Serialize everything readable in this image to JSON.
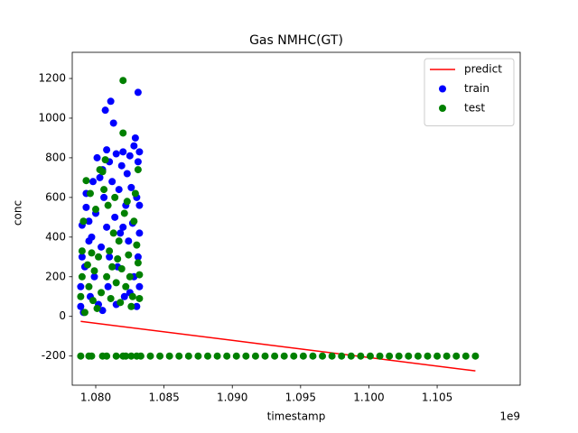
{
  "chart_data": {
    "type": "scatter",
    "title": "Gas NMHC(GT)",
    "x_label": "timestamp",
    "y_label": "conc",
    "x_offset_label": "1e9",
    "xlim": [
      1.07828,
      1.11108
    ],
    "ylim": [
      -347,
      1332
    ],
    "xticks": [
      {
        "value": 1.08,
        "label": "1.080"
      },
      {
        "value": 1.085,
        "label": "1.085"
      },
      {
        "value": 1.09,
        "label": "1.090"
      },
      {
        "value": 1.095,
        "label": "1.095"
      },
      {
        "value": 1.1,
        "label": "1.100"
      },
      {
        "value": 1.105,
        "label": "1.105"
      }
    ],
    "yticks": [
      -200,
      0,
      200,
      400,
      600,
      800,
      1000,
      1200
    ],
    "grid": false,
    "legend": "upper right",
    "series": [
      {
        "name": "predict",
        "color": "#ff0000",
        "kind": "line",
        "x": [
          1.0789,
          1.1078
        ],
        "values": [
          -25,
          -275
        ]
      },
      {
        "name": "train",
        "color": "#0000ff",
        "kind": "scatter",
        "x": [
          1.0789,
          1.0789,
          1.079,
          1.079,
          1.0791,
          1.0792,
          1.0793,
          1.0793,
          1.0795,
          1.0796,
          1.0797,
          1.0798,
          1.0799,
          1.08,
          1.0801,
          1.0802,
          1.0803,
          1.0804,
          1.0805,
          1.0806,
          1.0807,
          1.0808,
          1.0808,
          1.0809,
          1.081,
          1.081,
          1.0811,
          1.0812,
          1.0813,
          1.0814,
          1.0815,
          1.0816,
          1.0817,
          1.0818,
          1.0819,
          1.082,
          1.0821,
          1.0822,
          1.0823,
          1.0824,
          1.0825,
          1.0826,
          1.0827,
          1.0828,
          1.0829,
          1.0828,
          1.083,
          1.0831,
          1.0831,
          1.0832,
          1.0832,
          1.0832,
          1.0831,
          1.0832,
          1.083,
          1.0825,
          1.0815,
          1.0805,
          1.0795,
          1.082
        ],
        "values": [
          50,
          150,
          300,
          460,
          20,
          250,
          620,
          550,
          480,
          100,
          400,
          680,
          200,
          520,
          800,
          60,
          700,
          350,
          740,
          600,
          1040,
          840,
          450,
          150,
          780,
          300,
          1085,
          680,
          975,
          500,
          820,
          250,
          640,
          420,
          760,
          830,
          100,
          560,
          720,
          380,
          810,
          650,
          470,
          860,
          900,
          200,
          600,
          1130,
          780,
          830,
          560,
          420,
          300,
          150,
          50,
          120,
          60,
          30,
          380,
          450
        ]
      },
      {
        "name": "test",
        "color": "#008000",
        "kind": "scatter",
        "x": [
          1.0789,
          1.079,
          1.079,
          1.0791,
          1.0792,
          1.0793,
          1.0794,
          1.0795,
          1.0796,
          1.0797,
          1.0798,
          1.0799,
          1.08,
          1.0801,
          1.0802,
          1.0803,
          1.0804,
          1.0805,
          1.0806,
          1.0807,
          1.0808,
          1.0809,
          1.081,
          1.0811,
          1.0812,
          1.0813,
          1.0814,
          1.0815,
          1.0816,
          1.0817,
          1.0818,
          1.0819,
          1.082,
          1.082,
          1.0821,
          1.0822,
          1.0823,
          1.0824,
          1.0825,
          1.0826,
          1.0827,
          1.0828,
          1.0829,
          1.083,
          1.0831,
          1.0832,
          1.0832,
          1.0831,
          1.0789,
          1.0795,
          1.0797,
          1.0805,
          1.0808,
          1.0815,
          1.082,
          1.0822,
          1.0826,
          1.083,
          1.0833,
          1.084,
          1.0847,
          1.0854,
          1.0861,
          1.0868,
          1.0875,
          1.0882,
          1.0889,
          1.0896,
          1.0903,
          1.091,
          1.0917,
          1.0924,
          1.0931,
          1.0938,
          1.0945,
          1.0952,
          1.0959,
          1.0966,
          1.0973,
          1.098,
          1.0987,
          1.0994,
          1.1001,
          1.1008,
          1.1015,
          1.1022,
          1.1029,
          1.1036,
          1.1043,
          1.105,
          1.1057,
          1.1064,
          1.1071,
          1.1078
        ],
        "values": [
          100,
          200,
          330,
          480,
          20,
          685,
          260,
          150,
          620,
          320,
          80,
          230,
          540,
          40,
          300,
          740,
          120,
          730,
          640,
          790,
          200,
          560,
          330,
          90,
          250,
          420,
          600,
          170,
          290,
          380,
          70,
          240,
          1190,
          925,
          520,
          150,
          580,
          310,
          200,
          50,
          100,
          480,
          620,
          360,
          270,
          210,
          90,
          740,
          -200,
          -200,
          -200,
          -200,
          -200,
          -200,
          -200,
          -200,
          -200,
          -200,
          -200,
          -200,
          -200,
          -200,
          -200,
          -200,
          -200,
          -200,
          -200,
          -200,
          -200,
          -200,
          -200,
          -200,
          -200,
          -200,
          -200,
          -200,
          -200,
          -200,
          -200,
          -200,
          -200,
          -200,
          -200,
          -200,
          -200,
          -200,
          -200,
          -200,
          -200,
          -200,
          -200,
          -200,
          -200,
          -200
        ]
      }
    ]
  }
}
